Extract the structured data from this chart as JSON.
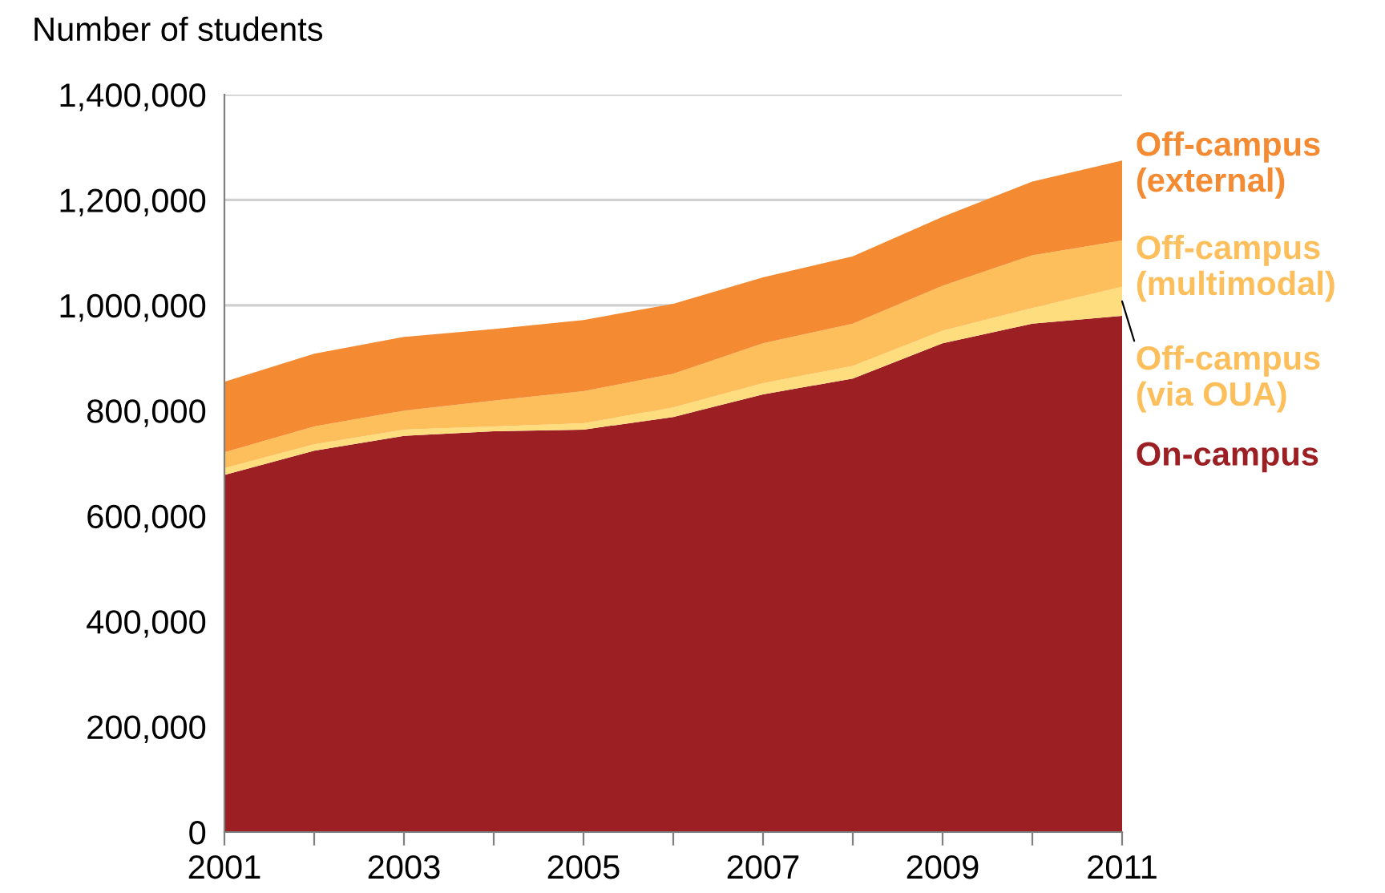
{
  "chart_data": {
    "type": "area",
    "stacked": true,
    "ylabel": "Number of students",
    "x": [
      2001,
      2002,
      2003,
      2004,
      2005,
      2006,
      2007,
      2008,
      2009,
      2010,
      2011
    ],
    "series": [
      {
        "name": "On-campus",
        "color": "#9c1f24",
        "values": [
          678000,
          724000,
          752000,
          761000,
          764000,
          788000,
          831000,
          861000,
          928000,
          965000,
          980000
        ]
      },
      {
        "name": "Off-campus (via OUA)",
        "color": "#fedd7e",
        "values": [
          13000,
          12000,
          12000,
          9000,
          12000,
          18000,
          21000,
          24000,
          24000,
          30000,
          55000
        ]
      },
      {
        "name": "Off-campus (multimodal)",
        "color": "#fdbf5b",
        "values": [
          30000,
          34000,
          36000,
          49000,
          61000,
          64000,
          76000,
          80000,
          85000,
          100000,
          88000
        ]
      },
      {
        "name": "Off-campus (external)",
        "color": "#f48a32",
        "values": [
          134000,
          138000,
          140000,
          136000,
          135000,
          133000,
          125000,
          128000,
          131000,
          140000,
          152000
        ]
      }
    ],
    "xlim": [
      2001,
      2011
    ],
    "xticks": [
      2001,
      {
        "value": 2002,
        "label": null
      },
      2003,
      {
        "value": 2004,
        "label": null
      },
      2005,
      {
        "value": 2006,
        "label": null
      },
      2007,
      {
        "value": 2008,
        "label": null
      },
      2009,
      {
        "value": 2010,
        "label": null
      },
      2011
    ],
    "ylim": [
      0,
      1400000
    ],
    "yticks": [
      0,
      {
        "value": 200000,
        "label": "200,000"
      },
      {
        "value": 400000,
        "label": "400,000"
      },
      {
        "value": 600000,
        "label": "600,000"
      },
      {
        "value": 800000,
        "label": "800,000"
      },
      {
        "value": 1000000,
        "label": "1,000,000"
      },
      {
        "value": 1200000,
        "label": "1,200,000"
      },
      {
        "value": 1400000,
        "label": "1,400,000"
      }
    ],
    "grid": "y"
  }
}
